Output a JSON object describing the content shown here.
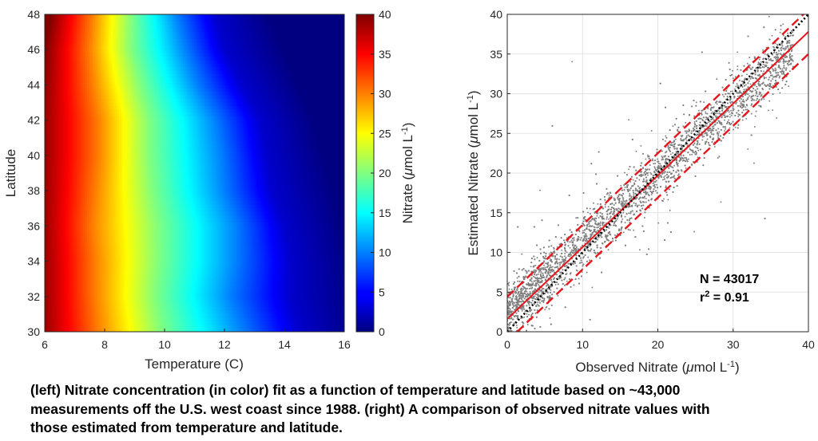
{
  "chart_data": [
    {
      "type": "heatmap",
      "title": "",
      "xlabel": "Temperature (C)",
      "ylabel": "Latitude",
      "xlim": [
        6,
        16
      ],
      "ylim": [
        30,
        48
      ],
      "x_ticks": [
        6,
        8,
        10,
        12,
        14,
        16
      ],
      "y_ticks": [
        30,
        32,
        34,
        36,
        38,
        40,
        42,
        44,
        46,
        48
      ],
      "colorbar": {
        "label": "Nitrate (μmol L-1)",
        "label_main": "Nitrate (",
        "label_mu": "μ",
        "label_unit": "mol L",
        "label_sup": "-1",
        "label_close": ")",
        "range": [
          0,
          40
        ],
        "ticks": [
          0,
          5,
          10,
          15,
          20,
          25,
          30,
          35,
          40
        ],
        "colormap": "jet"
      },
      "contours_approx": [
        {
          "nitrate": 40,
          "temperature_at_lat": [
            [
              30,
              5.8
            ],
            [
              34,
              5.8
            ],
            [
              38,
              5.8
            ],
            [
              42,
              5.8
            ],
            [
              44,
              5.9
            ],
            [
              46,
              6.0
            ],
            [
              48,
              6.2
            ]
          ]
        },
        {
          "nitrate": 30,
          "temperature_at_lat": [
            [
              30,
              7.8
            ],
            [
              32,
              7.7
            ],
            [
              34,
              7.7
            ],
            [
              36,
              7.6
            ],
            [
              38,
              7.7
            ],
            [
              40,
              7.8
            ],
            [
              42,
              7.8
            ],
            [
              44,
              7.6
            ],
            [
              46,
              7.5
            ],
            [
              48,
              7.6
            ]
          ]
        },
        {
          "nitrate": 20,
          "temperature_at_lat": [
            [
              30,
              9.9
            ],
            [
              32,
              9.7
            ],
            [
              34,
              9.8
            ],
            [
              36,
              9.8
            ],
            [
              38,
              9.6
            ],
            [
              40,
              9.5
            ],
            [
              42,
              9.5
            ],
            [
              44,
              9.2
            ],
            [
              46,
              8.9
            ],
            [
              48,
              8.9
            ]
          ]
        },
        {
          "nitrate": 10,
          "temperature_at_lat": [
            [
              30,
              12.6
            ],
            [
              32,
              12.2
            ],
            [
              34,
              12.4
            ],
            [
              36,
              12.4
            ],
            [
              38,
              12.0
            ],
            [
              40,
              11.9
            ],
            [
              42,
              11.7
            ],
            [
              44,
              11.1
            ],
            [
              46,
              10.7
            ],
            [
              48,
              10.4
            ]
          ]
        },
        {
          "nitrate": 3,
          "temperature_at_lat": [
            [
              30,
              14.5
            ],
            [
              32,
              14.2
            ],
            [
              34,
              14.2
            ],
            [
              36,
              14.0
            ],
            [
              38,
              13.6
            ],
            [
              40,
              13.4
            ],
            [
              42,
              13.2
            ],
            [
              44,
              12.6
            ],
            [
              46,
              12.0
            ],
            [
              48,
              11.7
            ]
          ]
        },
        {
          "nitrate": 0,
          "temperature_at_lat": [
            [
              30,
              16.5
            ],
            [
              34,
              16.2
            ],
            [
              38,
              15.7
            ],
            [
              42,
              15.0
            ],
            [
              46,
              14.0
            ],
            [
              48,
              13.5
            ]
          ]
        }
      ]
    },
    {
      "type": "scatter",
      "title": "",
      "xlabel": "Observed Nitrate (μmol L-1)",
      "xlabel_main": "Observed Nitrate (",
      "ylabel": "Estimated Nitrate (μmol L-1)",
      "ylabel_main": "Estimated Nitrate (",
      "label_mu": "μ",
      "label_unit": "mol L",
      "label_sup": "-1",
      "label_close": ")",
      "xlim": [
        0,
        40
      ],
      "ylim": [
        0,
        40
      ],
      "x_ticks": [
        0,
        10,
        20,
        30,
        40
      ],
      "y_ticks": [
        0,
        5,
        10,
        15,
        20,
        25,
        30,
        35,
        40
      ],
      "grid": true,
      "point_color": "#808080",
      "point_cloud": {
        "count_shown": 43017,
        "fit_slope": 0.88,
        "fit_intercept": 2.3,
        "x_range": [
          0,
          38
        ],
        "spread_sd": 1.7
      },
      "lines": [
        {
          "style": "solid",
          "color": "#e8161c",
          "x": [
            0,
            40
          ],
          "y": [
            1.6,
            37.8
          ]
        },
        {
          "style": "dashed",
          "color": "#e8161c",
          "x": [
            0,
            40
          ],
          "y": [
            4.4,
            40.6
          ]
        },
        {
          "style": "dashed",
          "color": "#e8161c",
          "x": [
            0,
            40
          ],
          "y": [
            -1.2,
            35.0
          ]
        },
        {
          "style": "dotted",
          "color": "#000000",
          "x": [
            0,
            40
          ],
          "y": [
            0,
            40
          ]
        }
      ],
      "annotation": {
        "n_label": "N = 43017",
        "r_main": "r",
        "r_sup": "2",
        "r_value": " = 0.91"
      }
    }
  ],
  "caption": {
    "line1": "(left) Nitrate concentration (in color) fit as a function of temperature and latitude based on ~43,000",
    "line2": "measurements off the U.S. west coast since 1988. (right) A comparison of observed nitrate values with",
    "line3": "those estimated from temperature and latitude."
  }
}
